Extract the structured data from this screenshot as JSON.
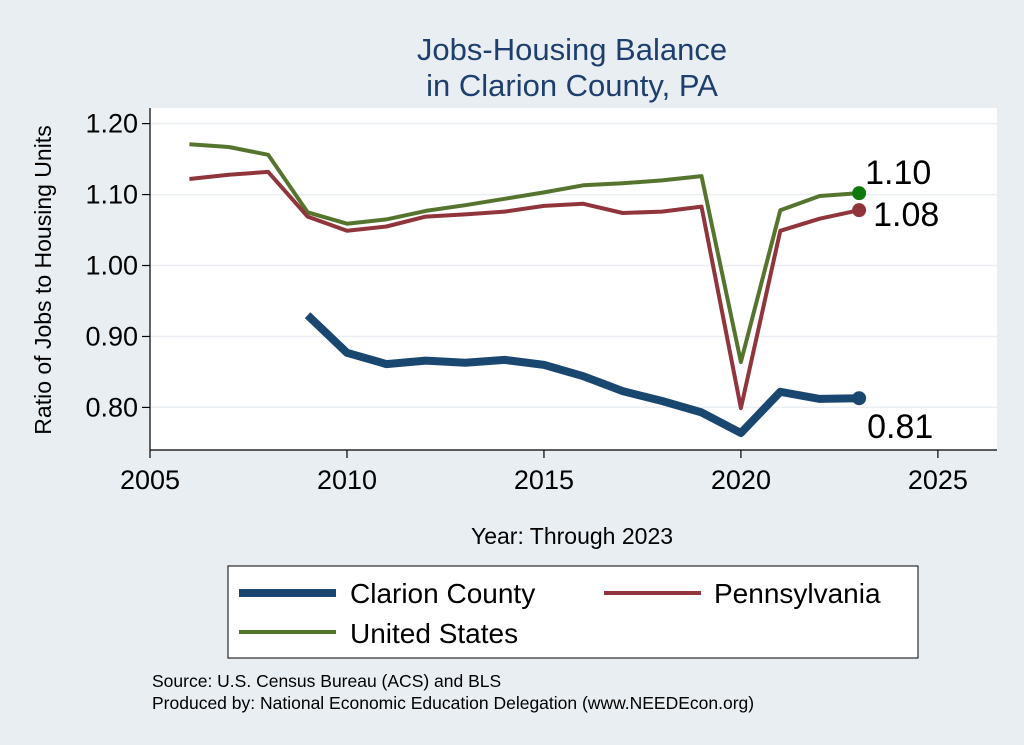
{
  "chart_data": {
    "type": "line",
    "title": [
      "Jobs-Housing Balance",
      "in Clarion County, PA"
    ],
    "xlabel": "Year: Through 2023",
    "ylabel": "Ratio of Jobs to Housing Units",
    "xlim": [
      2005,
      2026.5
    ],
    "ylim": [
      0.74,
      1.222
    ],
    "xticks": [
      "2005",
      "2010",
      "2015",
      "2020",
      "2025"
    ],
    "xtick_values": [
      2005,
      2010,
      2015,
      2020,
      2025
    ],
    "yticks": [
      "0.80",
      "0.90",
      "1.00",
      "1.10",
      "1.20"
    ],
    "ytick_values": [
      0.8,
      0.9,
      1.0,
      1.1,
      1.2
    ],
    "grid": true,
    "legend_position": "bottom",
    "series": [
      {
        "name": "Clarion County",
        "color": "#1a476f",
        "x": [
          2009,
          2010,
          2011,
          2012,
          2013,
          2014,
          2015,
          2016,
          2017,
          2018,
          2019,
          2020,
          2021,
          2022,
          2023
        ],
        "values": [
          0.93,
          0.877,
          0.861,
          0.866,
          0.863,
          0.867,
          0.86,
          0.844,
          0.823,
          0.809,
          0.793,
          0.764,
          0.822,
          0.812,
          0.813
        ],
        "end_label": "0.81"
      },
      {
        "name": "Pennsylvania",
        "color": "#90353b",
        "x": [
          2006,
          2007,
          2008,
          2009,
          2010,
          2011,
          2012,
          2013,
          2014,
          2015,
          2016,
          2017,
          2018,
          2019,
          2020,
          2021,
          2022,
          2023
        ],
        "values": [
          1.122,
          1.128,
          1.132,
          1.069,
          1.049,
          1.055,
          1.069,
          1.072,
          1.076,
          1.084,
          1.087,
          1.074,
          1.076,
          1.083,
          0.799,
          1.049,
          1.066,
          1.078
        ],
        "end_label": "1.08"
      },
      {
        "name": "United States",
        "color": "#55752f",
        "x": [
          2006,
          2007,
          2008,
          2009,
          2010,
          2011,
          2012,
          2013,
          2014,
          2015,
          2016,
          2017,
          2018,
          2019,
          2020,
          2021,
          2022,
          2023
        ],
        "values": [
          1.171,
          1.167,
          1.156,
          1.075,
          1.059,
          1.065,
          1.077,
          1.085,
          1.094,
          1.103,
          1.113,
          1.116,
          1.12,
          1.126,
          0.864,
          1.078,
          1.098,
          1.102
        ],
        "end_label": "1.10",
        "end_marker_color": "#0e7a0e"
      }
    ],
    "legend": [
      {
        "label": "Clarion County",
        "color": "#1a476f"
      },
      {
        "label": "Pennsylvania",
        "color": "#90353b"
      },
      {
        "label": "United States",
        "color": "#55752f"
      }
    ],
    "notes": [
      "Source: U.S. Census Bureau (ACS) and BLS",
      "Produced by: National Economic Education Delegation (www.NEEDEcon.org)"
    ]
  }
}
